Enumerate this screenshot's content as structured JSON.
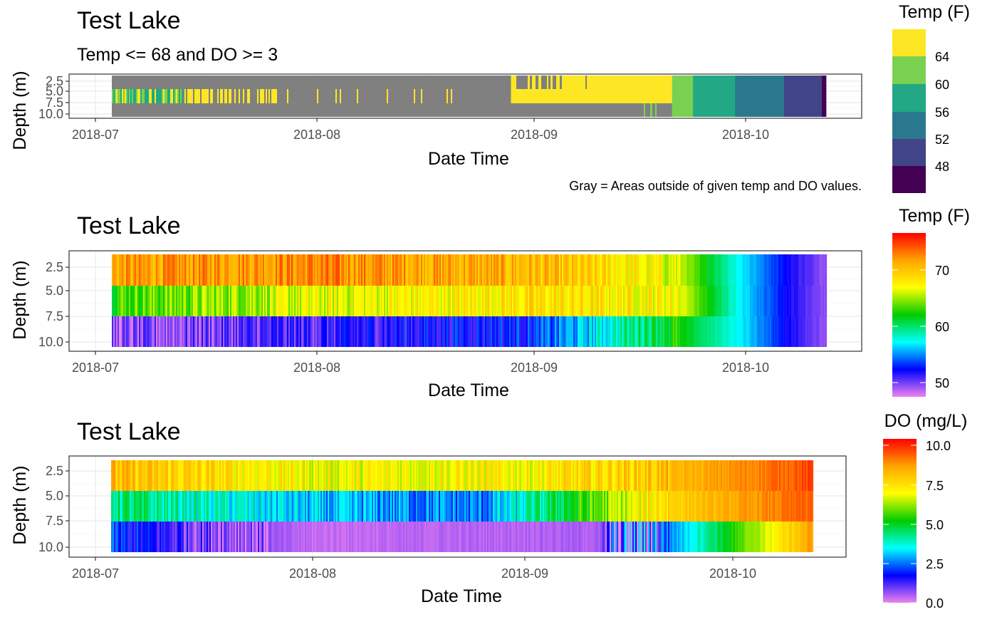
{
  "chart_data": [
    {
      "type": "heatmap",
      "title": "Test Lake",
      "subtitle": "Temp <= 68 and DO >= 3",
      "xlabel": "Date Time",
      "ylabel": "Depth (m)",
      "caption": "Gray = Areas outside of given temp and DO values.",
      "x_ticks": [
        "2018-07",
        "2018-08",
        "2018-09",
        "2018-10"
      ],
      "xlim": [
        "2018-06-29",
        "2018-10-17"
      ],
      "data_range": [
        "2018-07-03",
        "2018-10-13"
      ],
      "y_ticks": [
        "2.5",
        "5.0",
        "7.5",
        "10.0"
      ],
      "ylim": [
        0,
        10
      ],
      "reversed_y": true,
      "depths": [
        2.5,
        5.0,
        7.5,
        10.0
      ],
      "outside_color": "#808080",
      "legend": {
        "title": "Temp (F)",
        "type": "binned",
        "ticks": [
          "64",
          "60",
          "56",
          "52",
          "48"
        ],
        "colors": [
          "#fde725",
          "#7ad151",
          "#22a884",
          "#2a788e",
          "#414487",
          "#440154"
        ]
      },
      "periods": [
        {
          "start": "2018-07-03",
          "end": "2018-08-29",
          "color": "gray (surface and bottom); mixed green/yellow at 5.0 m"
        },
        {
          "start": "2018-08-29",
          "end": "2018-09-21",
          "color": "yellow with gray gaps near surface"
        },
        {
          "start": "2018-09-21",
          "end": "2018-09-24",
          "temp_bin": "60-64"
        },
        {
          "start": "2018-09-24",
          "end": "2018-09-30",
          "temp_bin": "56-60"
        },
        {
          "start": "2018-09-30",
          "end": "2018-10-07",
          "temp_bin": "52-56"
        },
        {
          "start": "2018-10-07",
          "end": "2018-10-13",
          "temp_bin": "48-52"
        },
        {
          "start": "2018-10-13",
          "end": "2018-10-13",
          "temp_bin": "<48"
        }
      ]
    },
    {
      "type": "heatmap",
      "title": "Test Lake",
      "xlabel": "Date Time",
      "ylabel": "Depth (m)",
      "x_ticks": [
        "2018-07",
        "2018-08",
        "2018-09",
        "2018-10"
      ],
      "xlim": [
        "2018-06-29",
        "2018-10-17"
      ],
      "y_ticks": [
        "2.5",
        "5.0",
        "7.5",
        "10.0"
      ],
      "ylim": [
        1.2,
        10.8
      ],
      "reversed_y": true,
      "depths": [
        2.5,
        5.0,
        7.5,
        10.0
      ],
      "legend": {
        "title": "Temp (F)",
        "type": "continuous",
        "ticks": [
          70,
          60,
          50
        ],
        "range": [
          47.5,
          76
        ],
        "colors": [
          "#ee82ee",
          "#0000ff",
          "#00ffff",
          "#00cc00",
          "#ffff00",
          "#ffa500",
          "#ff0000"
        ]
      },
      "series": [
        {
          "depth": 2.5,
          "dates": [
            "2018-07-03",
            "2018-08-01",
            "2018-09-01",
            "2018-09-21",
            "2018-09-30",
            "2018-10-07",
            "2018-10-13"
          ],
          "values": [
            71,
            72,
            70,
            66,
            57,
            52,
            49
          ]
        },
        {
          "depth": 5.0,
          "dates": [
            "2018-07-03",
            "2018-08-01",
            "2018-09-01",
            "2018-09-21",
            "2018-09-30",
            "2018-10-07",
            "2018-10-13"
          ],
          "values": [
            63,
            66,
            68,
            67,
            57,
            52,
            49
          ]
        },
        {
          "depth": 7.5,
          "dates": [
            "2018-07-03",
            "2018-08-01",
            "2018-09-01",
            "2018-09-21",
            "2018-09-30",
            "2018-10-07",
            "2018-10-13"
          ],
          "values": [
            49,
            51,
            53,
            62,
            57,
            52,
            49
          ]
        }
      ]
    },
    {
      "type": "heatmap",
      "title": "Test Lake",
      "xlabel": "Date Time",
      "ylabel": "Depth (m)",
      "x_ticks": [
        "2018-07",
        "2018-08",
        "2018-09",
        "2018-10"
      ],
      "xlim": [
        "2018-06-29",
        "2018-10-17"
      ],
      "y_ticks": [
        "2.5",
        "5.0",
        "7.5",
        "10.0"
      ],
      "ylim": [
        1.2,
        10.8
      ],
      "reversed_y": true,
      "depths": [
        2.5,
        5.0,
        7.5,
        10.0
      ],
      "legend": {
        "title": "DO (mg/L)",
        "type": "continuous",
        "ticks": [
          "10.0",
          "7.5",
          "5.0",
          "2.5",
          "0.0"
        ],
        "range": [
          0,
          10.5
        ],
        "colors": [
          "#ee82ee",
          "#0000ff",
          "#00ffff",
          "#00cc00",
          "#ffff00",
          "#ffa500",
          "#ff0000"
        ]
      },
      "series": [
        {
          "depth": 2.5,
          "dates": [
            "2018-07-03",
            "2018-08-01",
            "2018-09-01",
            "2018-09-21",
            "2018-10-13"
          ],
          "values": [
            8.2,
            7.0,
            7.2,
            8.2,
            9.8
          ]
        },
        {
          "depth": 5.0,
          "dates": [
            "2018-07-03",
            "2018-08-01",
            "2018-08-25",
            "2018-09-21",
            "2018-10-13"
          ],
          "values": [
            4.5,
            3.0,
            2.5,
            7.8,
            9.6
          ]
        },
        {
          "depth": 7.5,
          "dates": [
            "2018-07-03",
            "2018-07-15",
            "2018-08-01",
            "2018-09-12",
            "2018-09-21",
            "2018-10-13"
          ],
          "values": [
            2.0,
            1.0,
            0.3,
            0.5,
            2.5,
            9.0
          ]
        }
      ]
    }
  ]
}
